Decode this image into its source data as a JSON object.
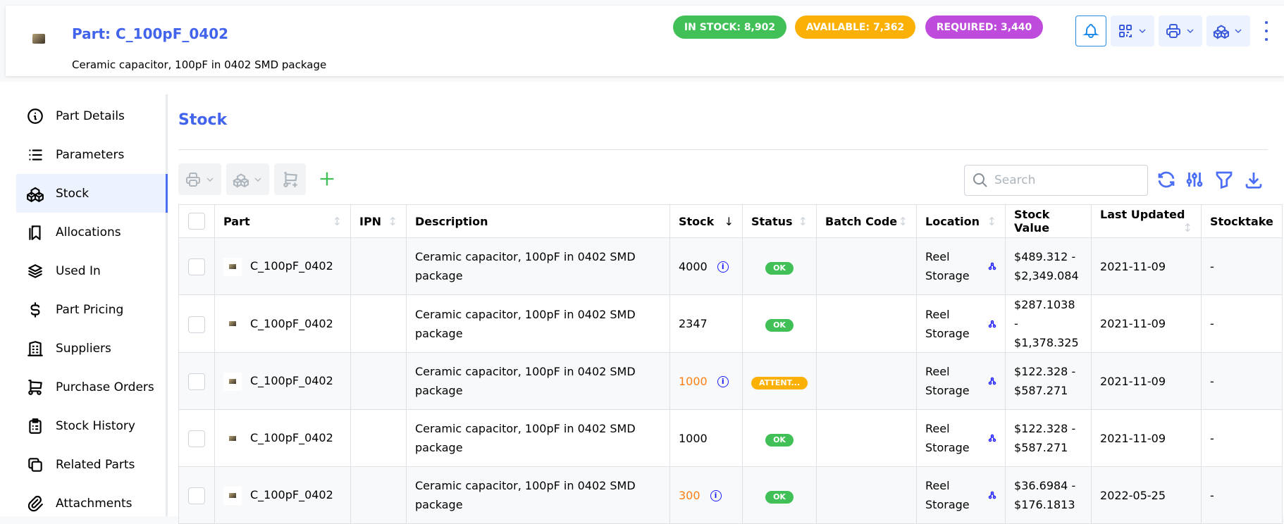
{
  "header": {
    "title": "Part: C_100pF_0402",
    "subtitle": "Ceramic capacitor, 100pF in 0402 SMD package",
    "badges": [
      {
        "label": "IN STOCK: 8,902",
        "color": "#40c057"
      },
      {
        "label": "AVAILABLE: 7,362",
        "color": "#fab005"
      },
      {
        "label": "REQUIRED: 3,440",
        "color": "#be4bdb"
      }
    ]
  },
  "sidebar": {
    "items": [
      {
        "label": "Part Details"
      },
      {
        "label": "Parameters"
      },
      {
        "label": "Stock",
        "active": true
      },
      {
        "label": "Allocations"
      },
      {
        "label": "Used In"
      },
      {
        "label": "Part Pricing"
      },
      {
        "label": "Suppliers"
      },
      {
        "label": "Purchase Orders"
      },
      {
        "label": "Stock History"
      },
      {
        "label": "Related Parts"
      },
      {
        "label": "Attachments"
      }
    ]
  },
  "main": {
    "heading": "Stock",
    "search_placeholder": "Search"
  },
  "table": {
    "columns": [
      "Part",
      "IPN",
      "Description",
      "Stock",
      "Status",
      "Batch Code",
      "Location",
      "Stock Value",
      "Last Updated",
      "Stocktake"
    ],
    "rows": [
      {
        "part": "C_100pF_0402",
        "ipn": "",
        "description": "Ceramic capacitor, 100pF in 0402 SMD package",
        "stock": "4000",
        "stock_color": "#000000",
        "info": true,
        "status": "OK",
        "status_color": "#40c057",
        "batch": "",
        "location": "Reel Storage",
        "value": "$489.312 - $2,349.084",
        "updated": "2021-11-09",
        "stocktake": "-"
      },
      {
        "part": "C_100pF_0402",
        "ipn": "",
        "description": "Ceramic capacitor, 100pF in 0402 SMD package",
        "stock": "2347",
        "stock_color": "#000000",
        "info": false,
        "status": "OK",
        "status_color": "#40c057",
        "batch": "",
        "location": "Reel Storage",
        "value": "$287.1038 - $1,378.325",
        "updated": "2021-11-09",
        "stocktake": "-"
      },
      {
        "part": "C_100pF_0402",
        "ipn": "",
        "description": "Ceramic capacitor, 100pF in 0402 SMD package",
        "stock": "1000",
        "stock_color": "#fd7e14",
        "info": true,
        "status": "ATTENT...",
        "status_color": "#fab005",
        "batch": "",
        "location": "Reel Storage",
        "value": "$122.328 - $587.271",
        "updated": "2021-11-09",
        "stocktake": "-"
      },
      {
        "part": "C_100pF_0402",
        "ipn": "",
        "description": "Ceramic capacitor, 100pF in 0402 SMD package",
        "stock": "1000",
        "stock_color": "#000000",
        "info": false,
        "status": "OK",
        "status_color": "#40c057",
        "batch": "",
        "location": "Reel Storage",
        "value": "$122.328 - $587.271",
        "updated": "2021-11-09",
        "stocktake": "-"
      },
      {
        "part": "C_100pF_0402",
        "ipn": "",
        "description": "Ceramic capacitor, 100pF in 0402 SMD package",
        "stock": "300",
        "stock_color": "#fd7e14",
        "info": true,
        "status": "OK",
        "status_color": "#40c057",
        "batch": "",
        "location": "Reel Storage",
        "value": "$36.6984 - $176.1813",
        "updated": "2022-05-25",
        "stocktake": "-"
      }
    ]
  }
}
